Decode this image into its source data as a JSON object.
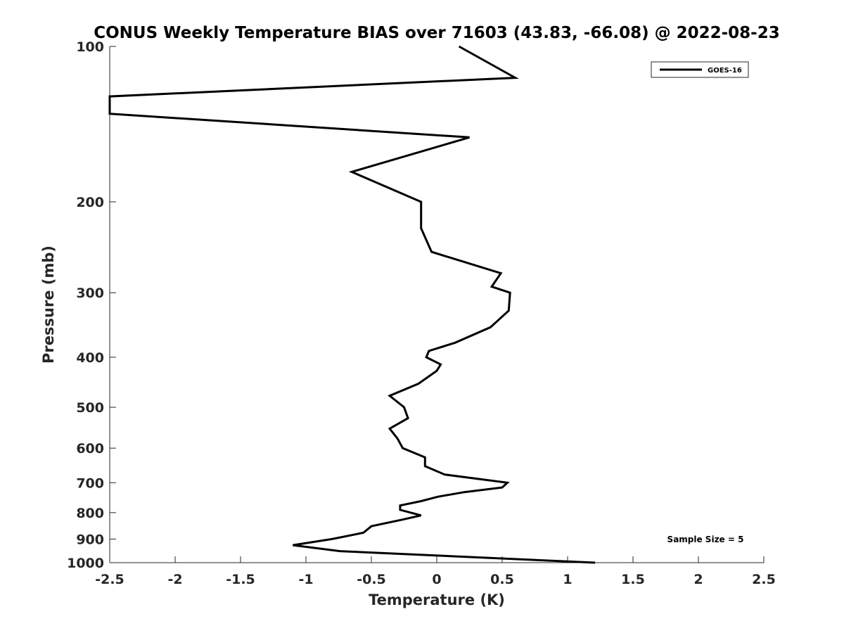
{
  "chart_data": {
    "type": "line",
    "title": "CONUS Weekly Temperature BIAS over 71603 (43.83, -66.08) @ 2022-08-23",
    "xlabel": "Temperature (K)",
    "ylabel": "Pressure (mb)",
    "xlim": [
      -2.5,
      2.5
    ],
    "ylim": [
      100,
      1000
    ],
    "y_scale": "log",
    "y_reversed": true,
    "x_ticks": [
      "-2.5",
      "-2",
      "-1.5",
      "-1",
      "-0.5",
      "0",
      "0.5",
      "1",
      "1.5",
      "2",
      "2.5"
    ],
    "y_ticks": [
      "100",
      "200",
      "300",
      "400",
      "500",
      "600",
      "700",
      "800",
      "900",
      "1000"
    ],
    "grid": false,
    "legend_position": "top-right",
    "annotation": "Sample Size = 5",
    "series": [
      {
        "name": "GOES-16",
        "color": "#000000",
        "points": [
          {
            "x": 0.17,
            "y": 100
          },
          {
            "x": 0.6,
            "y": 115
          },
          {
            "x": -2.5,
            "y": 125
          },
          {
            "x": -2.5,
            "y": 135
          },
          {
            "x": 0.25,
            "y": 150
          },
          {
            "x": -0.65,
            "y": 175
          },
          {
            "x": -0.12,
            "y": 200
          },
          {
            "x": -0.12,
            "y": 225
          },
          {
            "x": -0.04,
            "y": 250
          },
          {
            "x": 0.49,
            "y": 275
          },
          {
            "x": 0.42,
            "y": 292
          },
          {
            "x": 0.56,
            "y": 300
          },
          {
            "x": 0.55,
            "y": 325
          },
          {
            "x": 0.41,
            "y": 350
          },
          {
            "x": 0.14,
            "y": 375
          },
          {
            "x": -0.06,
            "y": 389
          },
          {
            "x": -0.08,
            "y": 400
          },
          {
            "x": 0.03,
            "y": 413
          },
          {
            "x": 0.0,
            "y": 425
          },
          {
            "x": -0.14,
            "y": 450
          },
          {
            "x": -0.36,
            "y": 475
          },
          {
            "x": -0.25,
            "y": 500
          },
          {
            "x": -0.22,
            "y": 525
          },
          {
            "x": -0.36,
            "y": 550
          },
          {
            "x": -0.3,
            "y": 575
          },
          {
            "x": -0.26,
            "y": 600
          },
          {
            "x": -0.09,
            "y": 625
          },
          {
            "x": -0.09,
            "y": 650
          },
          {
            "x": 0.06,
            "y": 675
          },
          {
            "x": 0.54,
            "y": 700
          },
          {
            "x": 0.5,
            "y": 715
          },
          {
            "x": 0.21,
            "y": 730
          },
          {
            "x": 0.01,
            "y": 745
          },
          {
            "x": -0.12,
            "y": 760
          },
          {
            "x": -0.28,
            "y": 775
          },
          {
            "x": -0.28,
            "y": 790
          },
          {
            "x": -0.12,
            "y": 810
          },
          {
            "x": -0.26,
            "y": 825
          },
          {
            "x": -0.5,
            "y": 850
          },
          {
            "x": -0.56,
            "y": 875
          },
          {
            "x": -0.8,
            "y": 900
          },
          {
            "x": -1.1,
            "y": 925
          },
          {
            "x": -0.74,
            "y": 950
          },
          {
            "x": 1.21,
            "y": 1000
          }
        ]
      }
    ]
  }
}
